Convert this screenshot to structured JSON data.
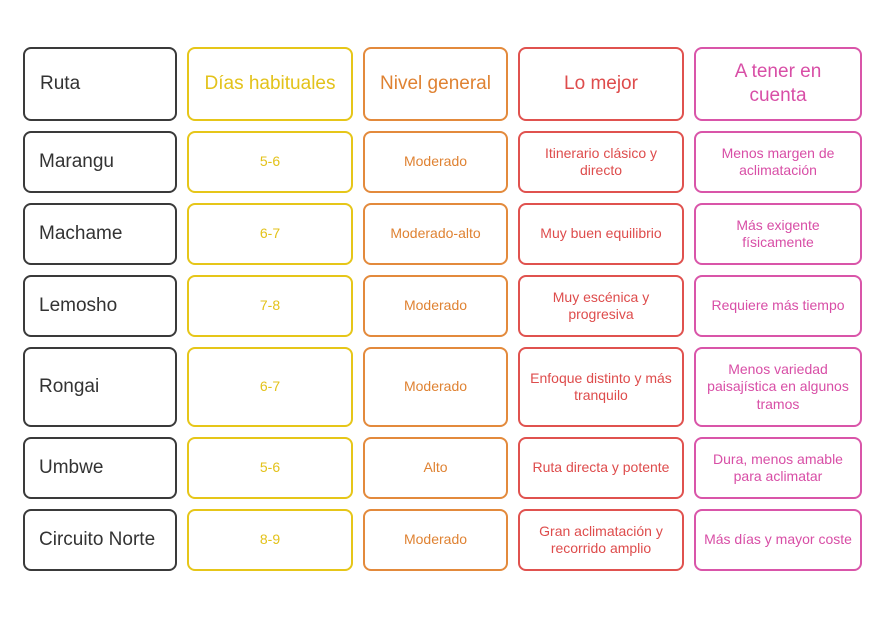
{
  "headers": [
    "Ruta",
    "Días habituales",
    "Nivel general",
    "Lo mejor",
    "A tener en cuenta"
  ],
  "rows": [
    {
      "ruta": "Marangu",
      "dias": "5-6",
      "nivel": "Moderado",
      "mejor": "Itinerario clásico y directo",
      "cuenta": "Menos margen de aclimatación"
    },
    {
      "ruta": "Machame",
      "dias": "6-7",
      "nivel": "Moderado-alto",
      "mejor": "Muy buen equilibrio",
      "cuenta": "Más exigente físicamente"
    },
    {
      "ruta": "Lemosho",
      "dias": "7-8",
      "nivel": "Moderado",
      "mejor": "Muy escénica y progresiva",
      "cuenta": "Requiere más tiempo"
    },
    {
      "ruta": "Rongai",
      "dias": "6-7",
      "nivel": "Moderado",
      "mejor": "Enfoque distinto y más tranquilo",
      "cuenta": "Menos variedad paisajística en algunos tramos"
    },
    {
      "ruta": "Umbwe",
      "dias": "5-6",
      "nivel": "Alto",
      "mejor": "Ruta directa y potente",
      "cuenta": "Dura, menos amable para aclimatar"
    },
    {
      "ruta": "Circuito Norte",
      "dias": "8-9",
      "nivel": "Moderado",
      "mejor": "Gran aclimatación y recorrido amplio",
      "cuenta": "Más días y mayor coste"
    }
  ],
  "colors": {
    "ruta": "#3a3a3a",
    "dias": "#e6c619",
    "nivel": "#e38a3c",
    "mejor": "#e0524f",
    "cuenta": "#d955a9"
  }
}
